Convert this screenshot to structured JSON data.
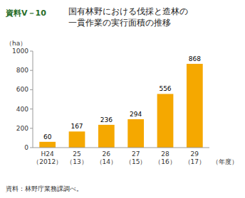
{
  "chart_data": {
    "type": "bar",
    "title": "国有林野における伐採と造林の\n一貫作業の実行面積の推移",
    "annotations": [
      "資料V－10"
    ],
    "source": "資料：林野庁業務課調べ。",
    "y_label": "（ha）",
    "x_label": "（年度）",
    "categories": [
      "H24\n（2012）",
      "25\n（13）",
      "26\n（14）",
      "27\n（15）",
      "28\n（16）",
      "29\n（17）"
    ],
    "values": [
      60,
      167,
      236,
      294,
      556,
      868
    ],
    "color": "#F5A800",
    "ylim": [
      0,
      1000
    ],
    "yticks": [
      0,
      200,
      400,
      600,
      800,
      1000
    ],
    "grid": false,
    "data_labels": true
  }
}
